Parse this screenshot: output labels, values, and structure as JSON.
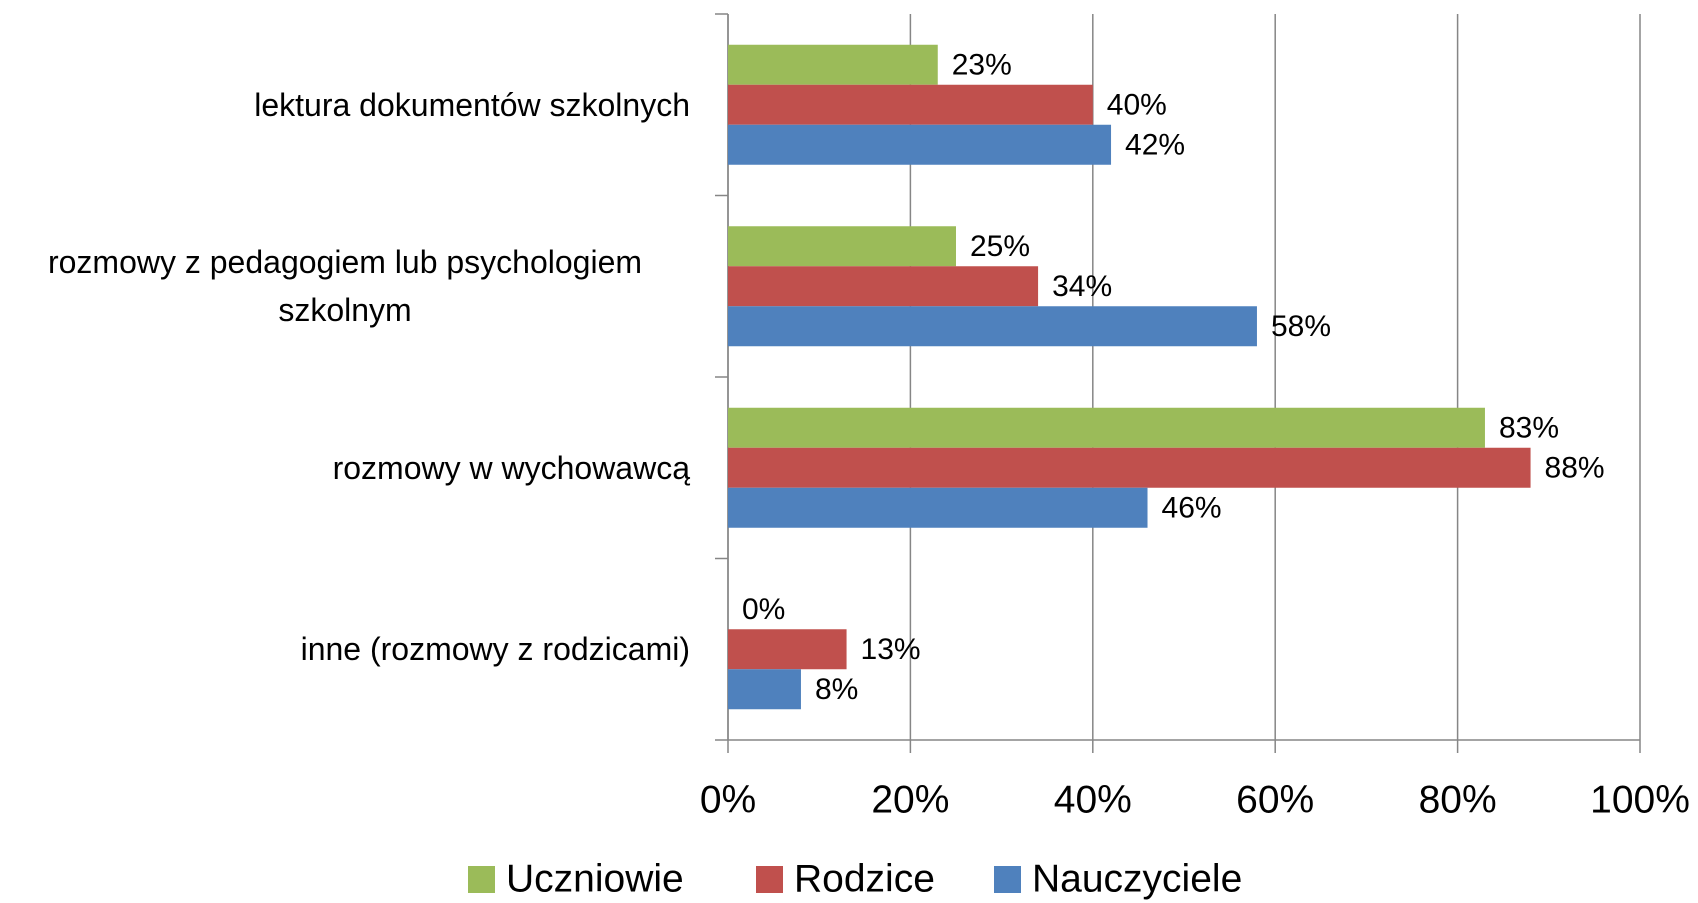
{
  "chart_data": {
    "type": "bar",
    "orientation": "horizontal",
    "categories": [
      "lektura dokumentów szkolnych",
      "rozmowy z pedagogiem lub psychologiem szkolnym",
      "rozmowy w wychowawcą",
      "inne (rozmowy z rodzicami)"
    ],
    "series": [
      {
        "name": "Uczniowie",
        "color": "#9bbb59",
        "values": [
          23,
          25,
          83,
          0
        ],
        "value_labels": [
          "23%",
          "25%",
          "83%",
          "0%"
        ]
      },
      {
        "name": "Rodzice",
        "color": "#c0504d",
        "values": [
          40,
          34,
          88,
          13
        ],
        "value_labels": [
          "40%",
          "34%",
          "88%",
          "13%"
        ]
      },
      {
        "name": "Nauczyciele",
        "color": "#4f81bd",
        "values": [
          42,
          58,
          46,
          8
        ],
        "value_labels": [
          "42%",
          "58%",
          "46%",
          "8%"
        ]
      }
    ],
    "xlim": [
      0,
      100
    ],
    "xticks": [
      {
        "value": 0,
        "label": "0%"
      },
      {
        "value": 20,
        "label": "20%"
      },
      {
        "value": 40,
        "label": "40%"
      },
      {
        "value": 60,
        "label": "60%"
      },
      {
        "value": 80,
        "label": "80%"
      },
      {
        "value": 100,
        "label": "100%"
      }
    ],
    "grid": true,
    "legend": "bottom"
  }
}
